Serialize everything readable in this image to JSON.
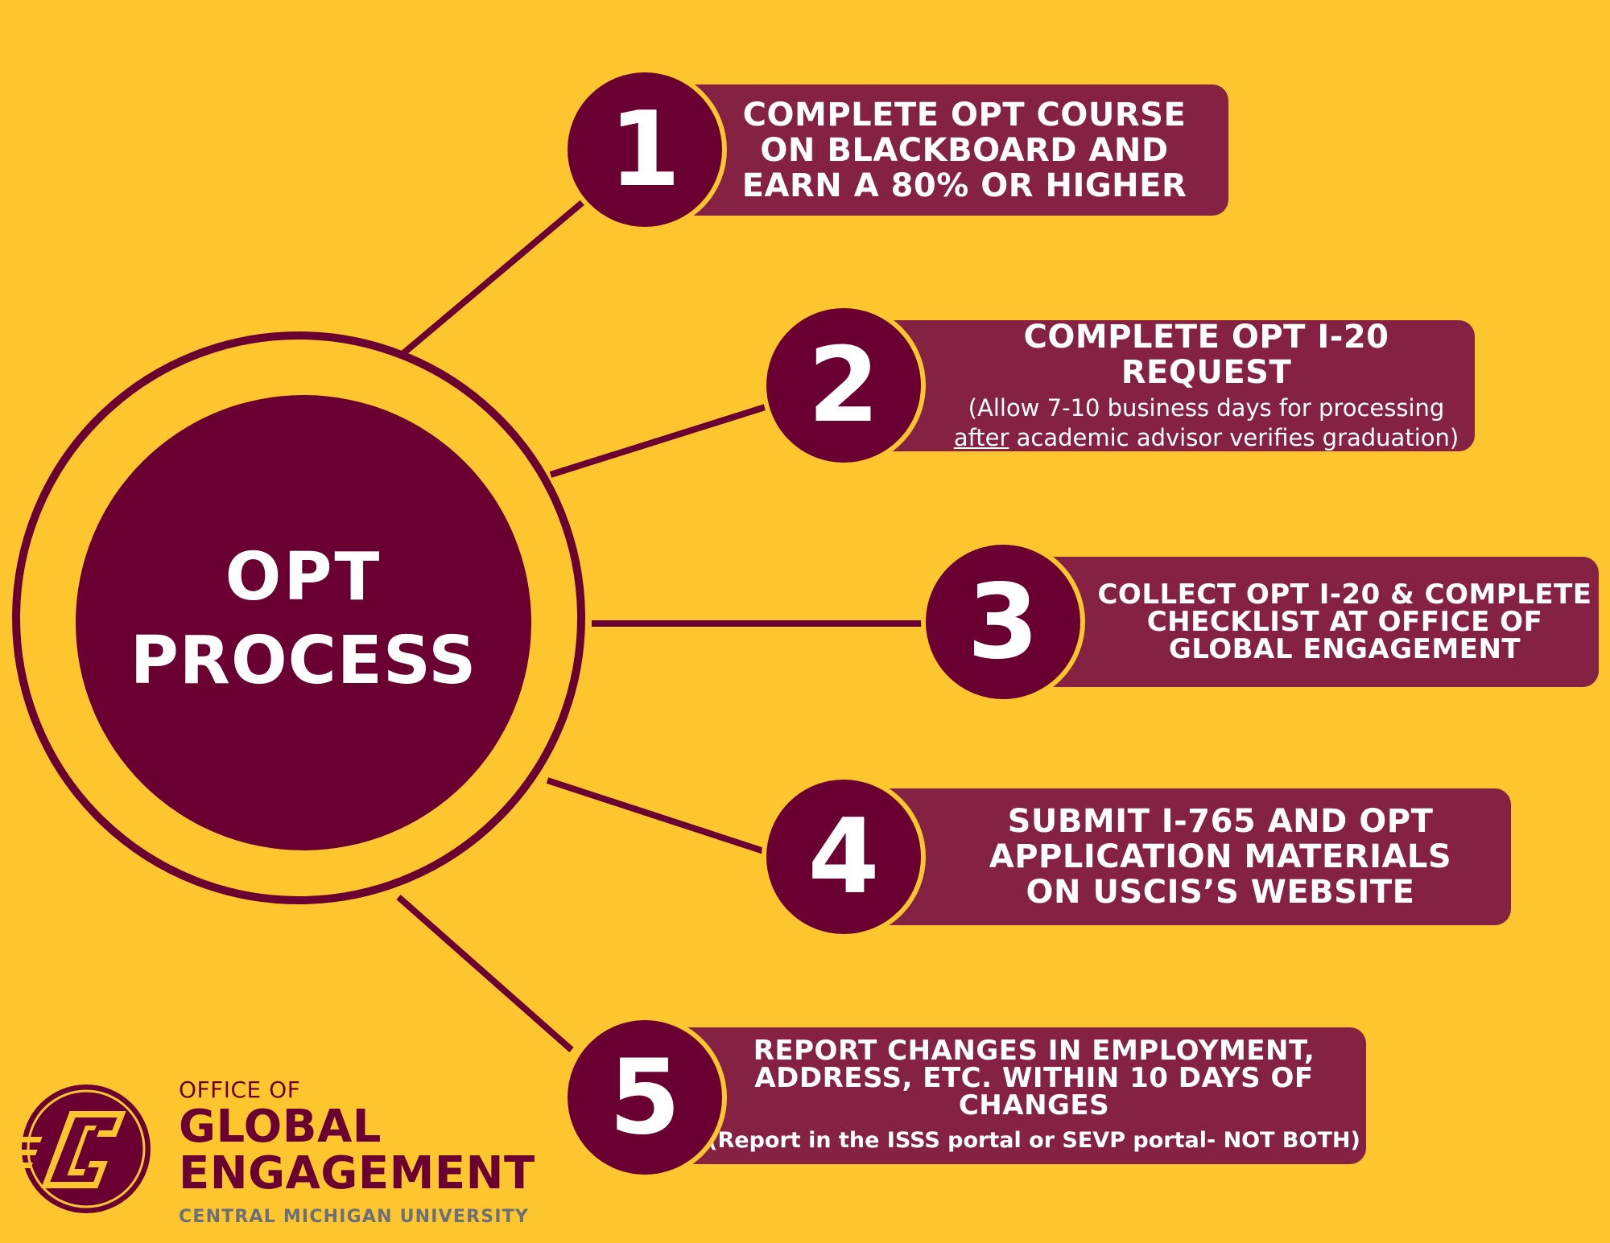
{
  "center": {
    "line1": "OPT",
    "line2": "PROCESS"
  },
  "steps": [
    {
      "number": "1",
      "title": [
        "COMPLETE OPT COURSE",
        "ON BLACKBOARD AND",
        "EARN A 80% OR HIGHER"
      ]
    },
    {
      "number": "2",
      "title": [
        "COMPLETE OPT I-20 REQUEST"
      ],
      "note_line1": "(Allow 7-10 business days for processing",
      "note_line2_emph": "after",
      "note_line2_rest": " academic advisor verifies graduation)"
    },
    {
      "number": "3",
      "title": [
        "COLLECT OPT I-20 & COMPLETE",
        "CHECKLIST AT OFFICE OF",
        "GLOBAL ENGAGEMENT"
      ]
    },
    {
      "number": "4",
      "title": [
        "SUBMIT I-765 AND OPT",
        "APPLICATION MATERIALS",
        "ON USCIS’S WEBSITE"
      ]
    },
    {
      "number": "5",
      "title": [
        "REPORT CHANGES IN EMPLOYMENT,",
        "ADDRESS, ETC. WITHIN 10 DAYS OF",
        "CHANGES"
      ],
      "note": "(Report in the ISSS portal or SEVP portal- NOT BOTH)"
    }
  ],
  "brand": {
    "prefix": "OFFICE OF",
    "line1": "GLOBAL",
    "line2": "ENGAGEMENT",
    "university": "CENTRAL MICHIGAN UNIVERSITY",
    "logo_icon": "chippewa-c-logo-icon"
  },
  "colors": {
    "background": "#FDC62F",
    "maroon": "#6A0032",
    "box": "#852244",
    "gray": "#6B6F7A"
  }
}
